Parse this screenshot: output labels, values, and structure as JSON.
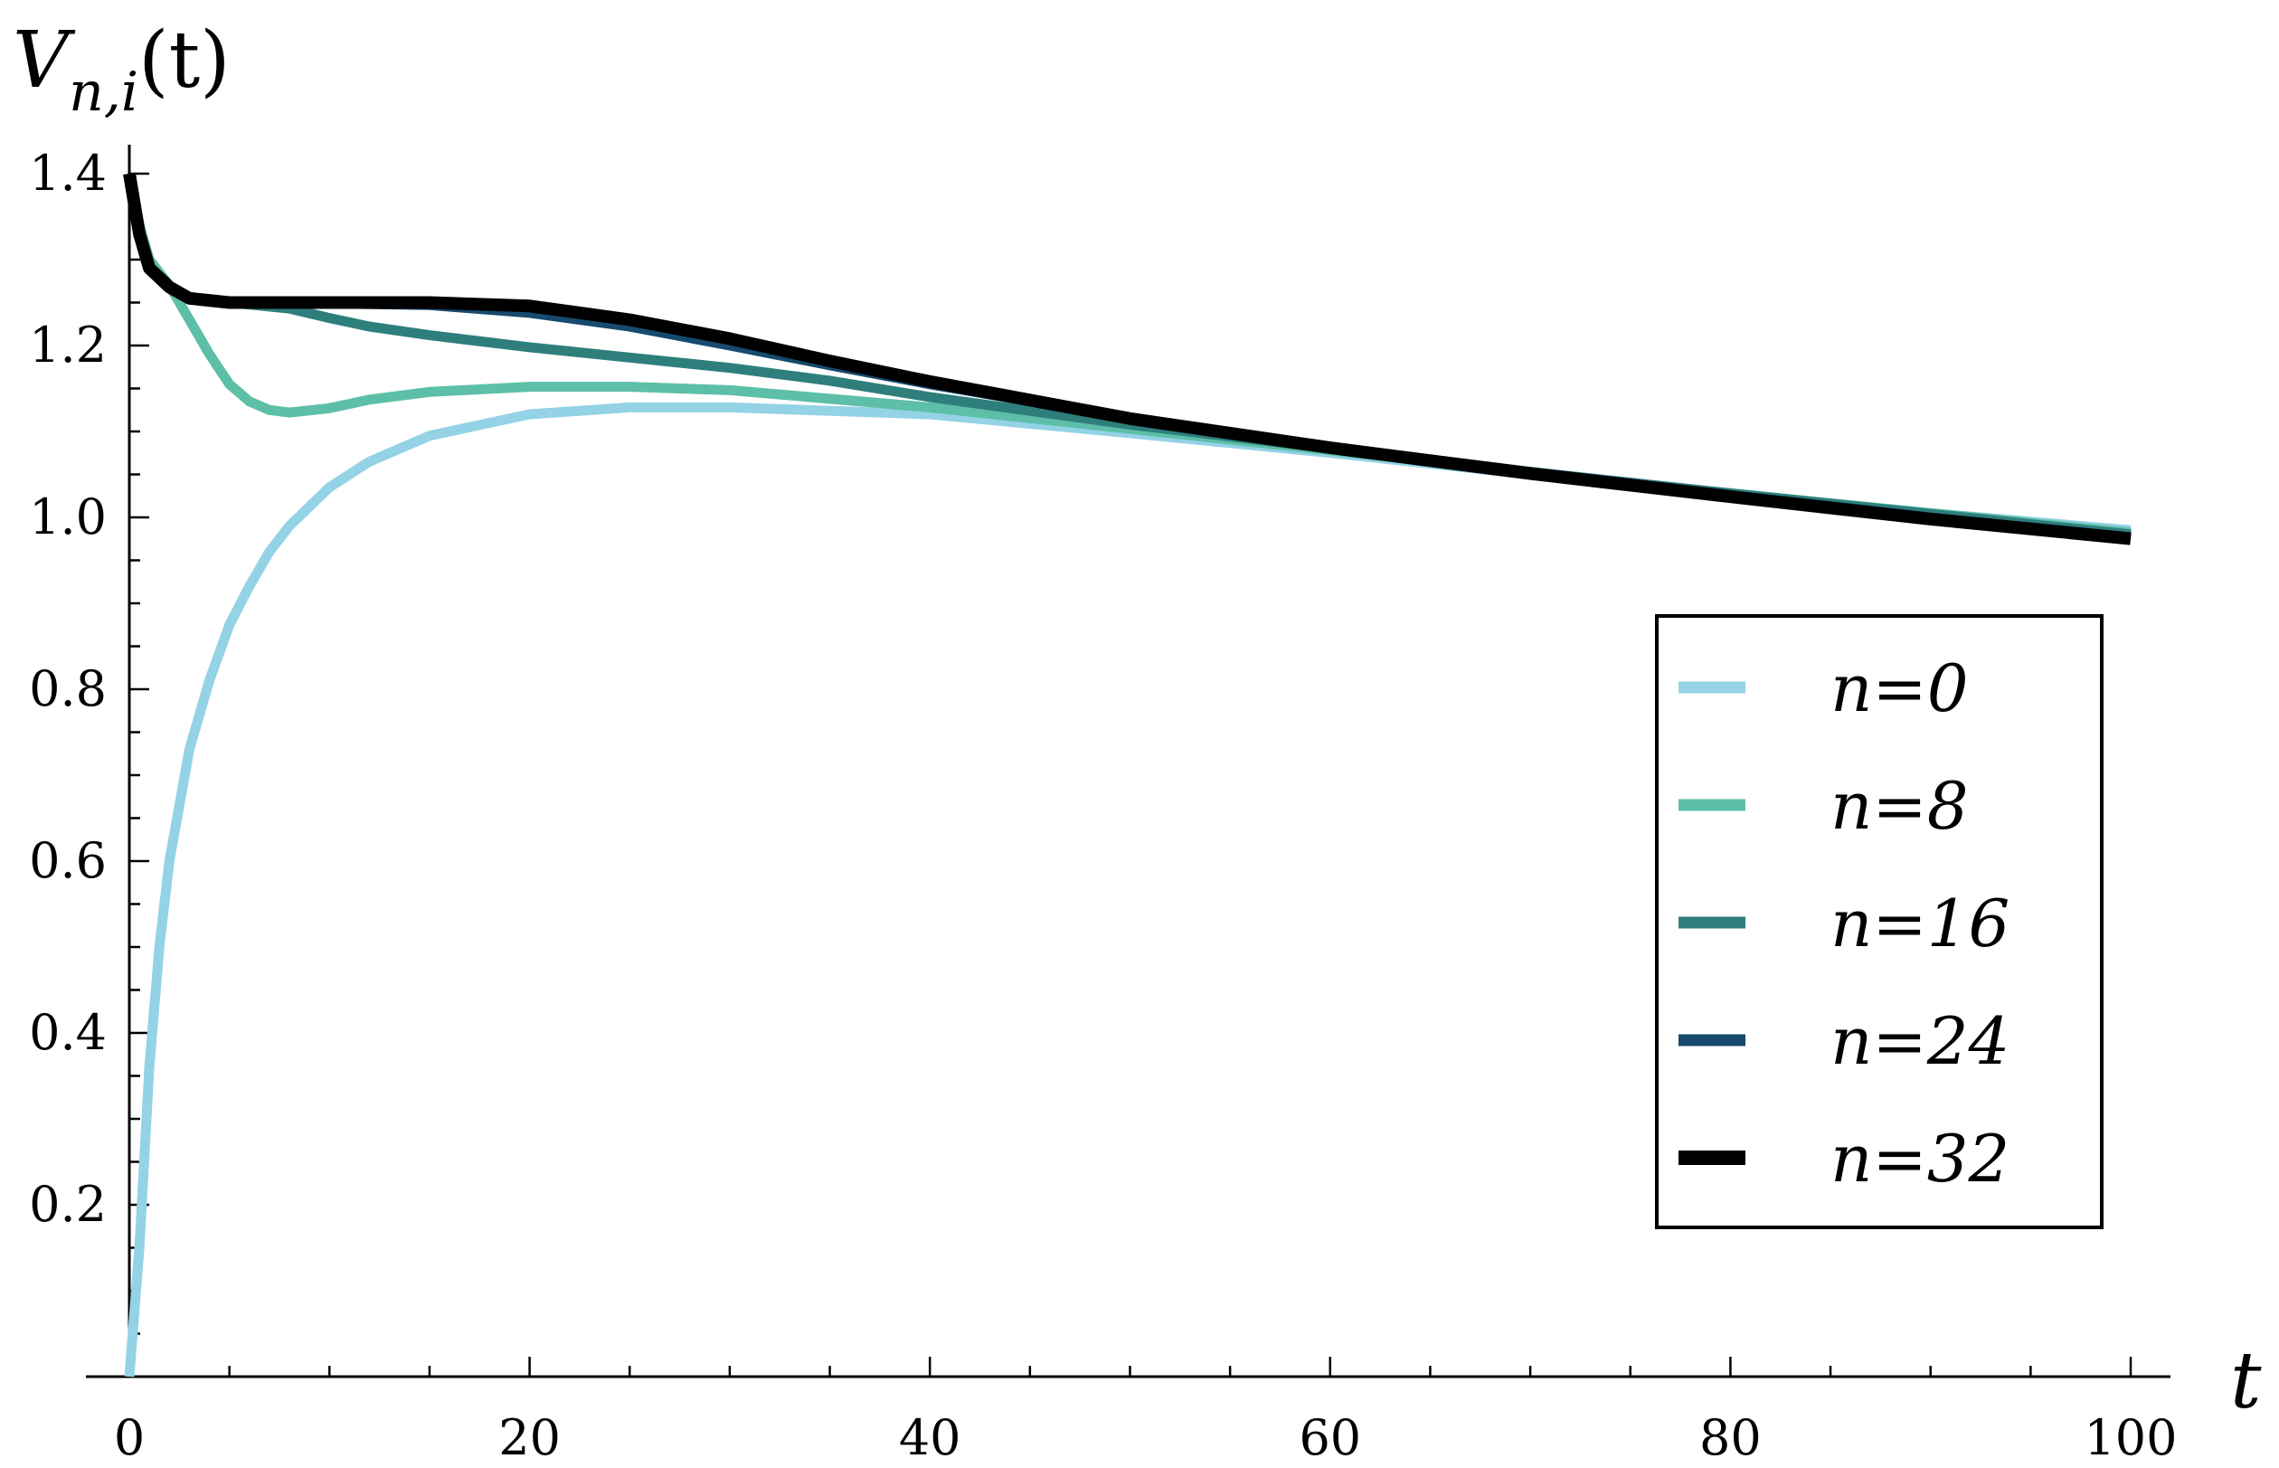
{
  "chart_data": {
    "type": "line",
    "xlabel": "t",
    "ylabel": "V_{n,i}(t)",
    "ylabel_parts": {
      "main": "V",
      "sub": "n,i",
      "arg": "(t)"
    },
    "xlim": [
      0,
      100
    ],
    "ylim": [
      0,
      1.4
    ],
    "x_ticks": [
      0,
      20,
      40,
      60,
      80,
      100
    ],
    "y_ticks": [
      0.2,
      0.4,
      0.6,
      0.8,
      1.0,
      1.2,
      1.4
    ],
    "y_tick_labels": [
      "0.2",
      "0.4",
      "0.6",
      "0.8",
      "1.0",
      "1.2",
      "1.4"
    ],
    "grid": false,
    "legend_position": "right",
    "series": [
      {
        "name": "n=0",
        "color": "#94d2e6",
        "points": [
          [
            0,
            0.0
          ],
          [
            0.5,
            0.15
          ],
          [
            1,
            0.36
          ],
          [
            1.5,
            0.5
          ],
          [
            2,
            0.6
          ],
          [
            3,
            0.73
          ],
          [
            4,
            0.81
          ],
          [
            5,
            0.875
          ],
          [
            6,
            0.92
          ],
          [
            7,
            0.96
          ],
          [
            8,
            0.99
          ],
          [
            10,
            1.035
          ],
          [
            12,
            1.065
          ],
          [
            15,
            1.095
          ],
          [
            20,
            1.12
          ],
          [
            25,
            1.128
          ],
          [
            30,
            1.128
          ],
          [
            40,
            1.12
          ],
          [
            50,
            1.098
          ],
          [
            60,
            1.075
          ],
          [
            70,
            1.05
          ],
          [
            80,
            1.027
          ],
          [
            90,
            1.005
          ],
          [
            100,
            0.985
          ]
        ]
      },
      {
        "name": "n=8",
        "color": "#5dbfa8",
        "points": [
          [
            0,
            1.4
          ],
          [
            0.5,
            1.34
          ],
          [
            1,
            1.3
          ],
          [
            2,
            1.27
          ],
          [
            3,
            1.23
          ],
          [
            4,
            1.19
          ],
          [
            5,
            1.155
          ],
          [
            6,
            1.135
          ],
          [
            7,
            1.125
          ],
          [
            8,
            1.122
          ],
          [
            10,
            1.127
          ],
          [
            12,
            1.137
          ],
          [
            15,
            1.146
          ],
          [
            20,
            1.152
          ],
          [
            25,
            1.152
          ],
          [
            30,
            1.148
          ],
          [
            40,
            1.128
          ],
          [
            50,
            1.103
          ],
          [
            60,
            1.078
          ],
          [
            70,
            1.052
          ],
          [
            80,
            1.028
          ],
          [
            90,
            1.005
          ],
          [
            100,
            0.982
          ]
        ]
      },
      {
        "name": "n=16",
        "color": "#2e7f7c",
        "points": [
          [
            0,
            1.4
          ],
          [
            0.5,
            1.33
          ],
          [
            1,
            1.29
          ],
          [
            2,
            1.268
          ],
          [
            3,
            1.255
          ],
          [
            5,
            1.25
          ],
          [
            8,
            1.243
          ],
          [
            10,
            1.232
          ],
          [
            12,
            1.222
          ],
          [
            15,
            1.212
          ],
          [
            20,
            1.198
          ],
          [
            25,
            1.186
          ],
          [
            30,
            1.174
          ],
          [
            35,
            1.159
          ],
          [
            40,
            1.14
          ],
          [
            50,
            1.108
          ],
          [
            60,
            1.08
          ],
          [
            70,
            1.053
          ],
          [
            80,
            1.028
          ],
          [
            90,
            1.004
          ],
          [
            100,
            0.98
          ]
        ]
      },
      {
        "name": "n=24",
        "color": "#164a6e",
        "points": [
          [
            0,
            1.4
          ],
          [
            0.5,
            1.33
          ],
          [
            1,
            1.29
          ],
          [
            2,
            1.268
          ],
          [
            3,
            1.255
          ],
          [
            5,
            1.25
          ],
          [
            10,
            1.249
          ],
          [
            15,
            1.247
          ],
          [
            20,
            1.238
          ],
          [
            25,
            1.222
          ],
          [
            30,
            1.2
          ],
          [
            35,
            1.177
          ],
          [
            40,
            1.155
          ],
          [
            50,
            1.115
          ],
          [
            60,
            1.082
          ],
          [
            70,
            1.053
          ],
          [
            80,
            1.026
          ],
          [
            90,
            1.0
          ],
          [
            100,
            0.977
          ]
        ]
      },
      {
        "name": "n=32",
        "color": "#000000",
        "points": [
          [
            0,
            1.4
          ],
          [
            0.5,
            1.33
          ],
          [
            1,
            1.29
          ],
          [
            2,
            1.268
          ],
          [
            3,
            1.255
          ],
          [
            5,
            1.25
          ],
          [
            10,
            1.25
          ],
          [
            15,
            1.25
          ],
          [
            20,
            1.246
          ],
          [
            25,
            1.23
          ],
          [
            30,
            1.208
          ],
          [
            35,
            1.182
          ],
          [
            40,
            1.158
          ],
          [
            50,
            1.115
          ],
          [
            60,
            1.081
          ],
          [
            70,
            1.051
          ],
          [
            80,
            1.024
          ],
          [
            90,
            0.998
          ],
          [
            100,
            0.975
          ]
        ]
      }
    ]
  }
}
